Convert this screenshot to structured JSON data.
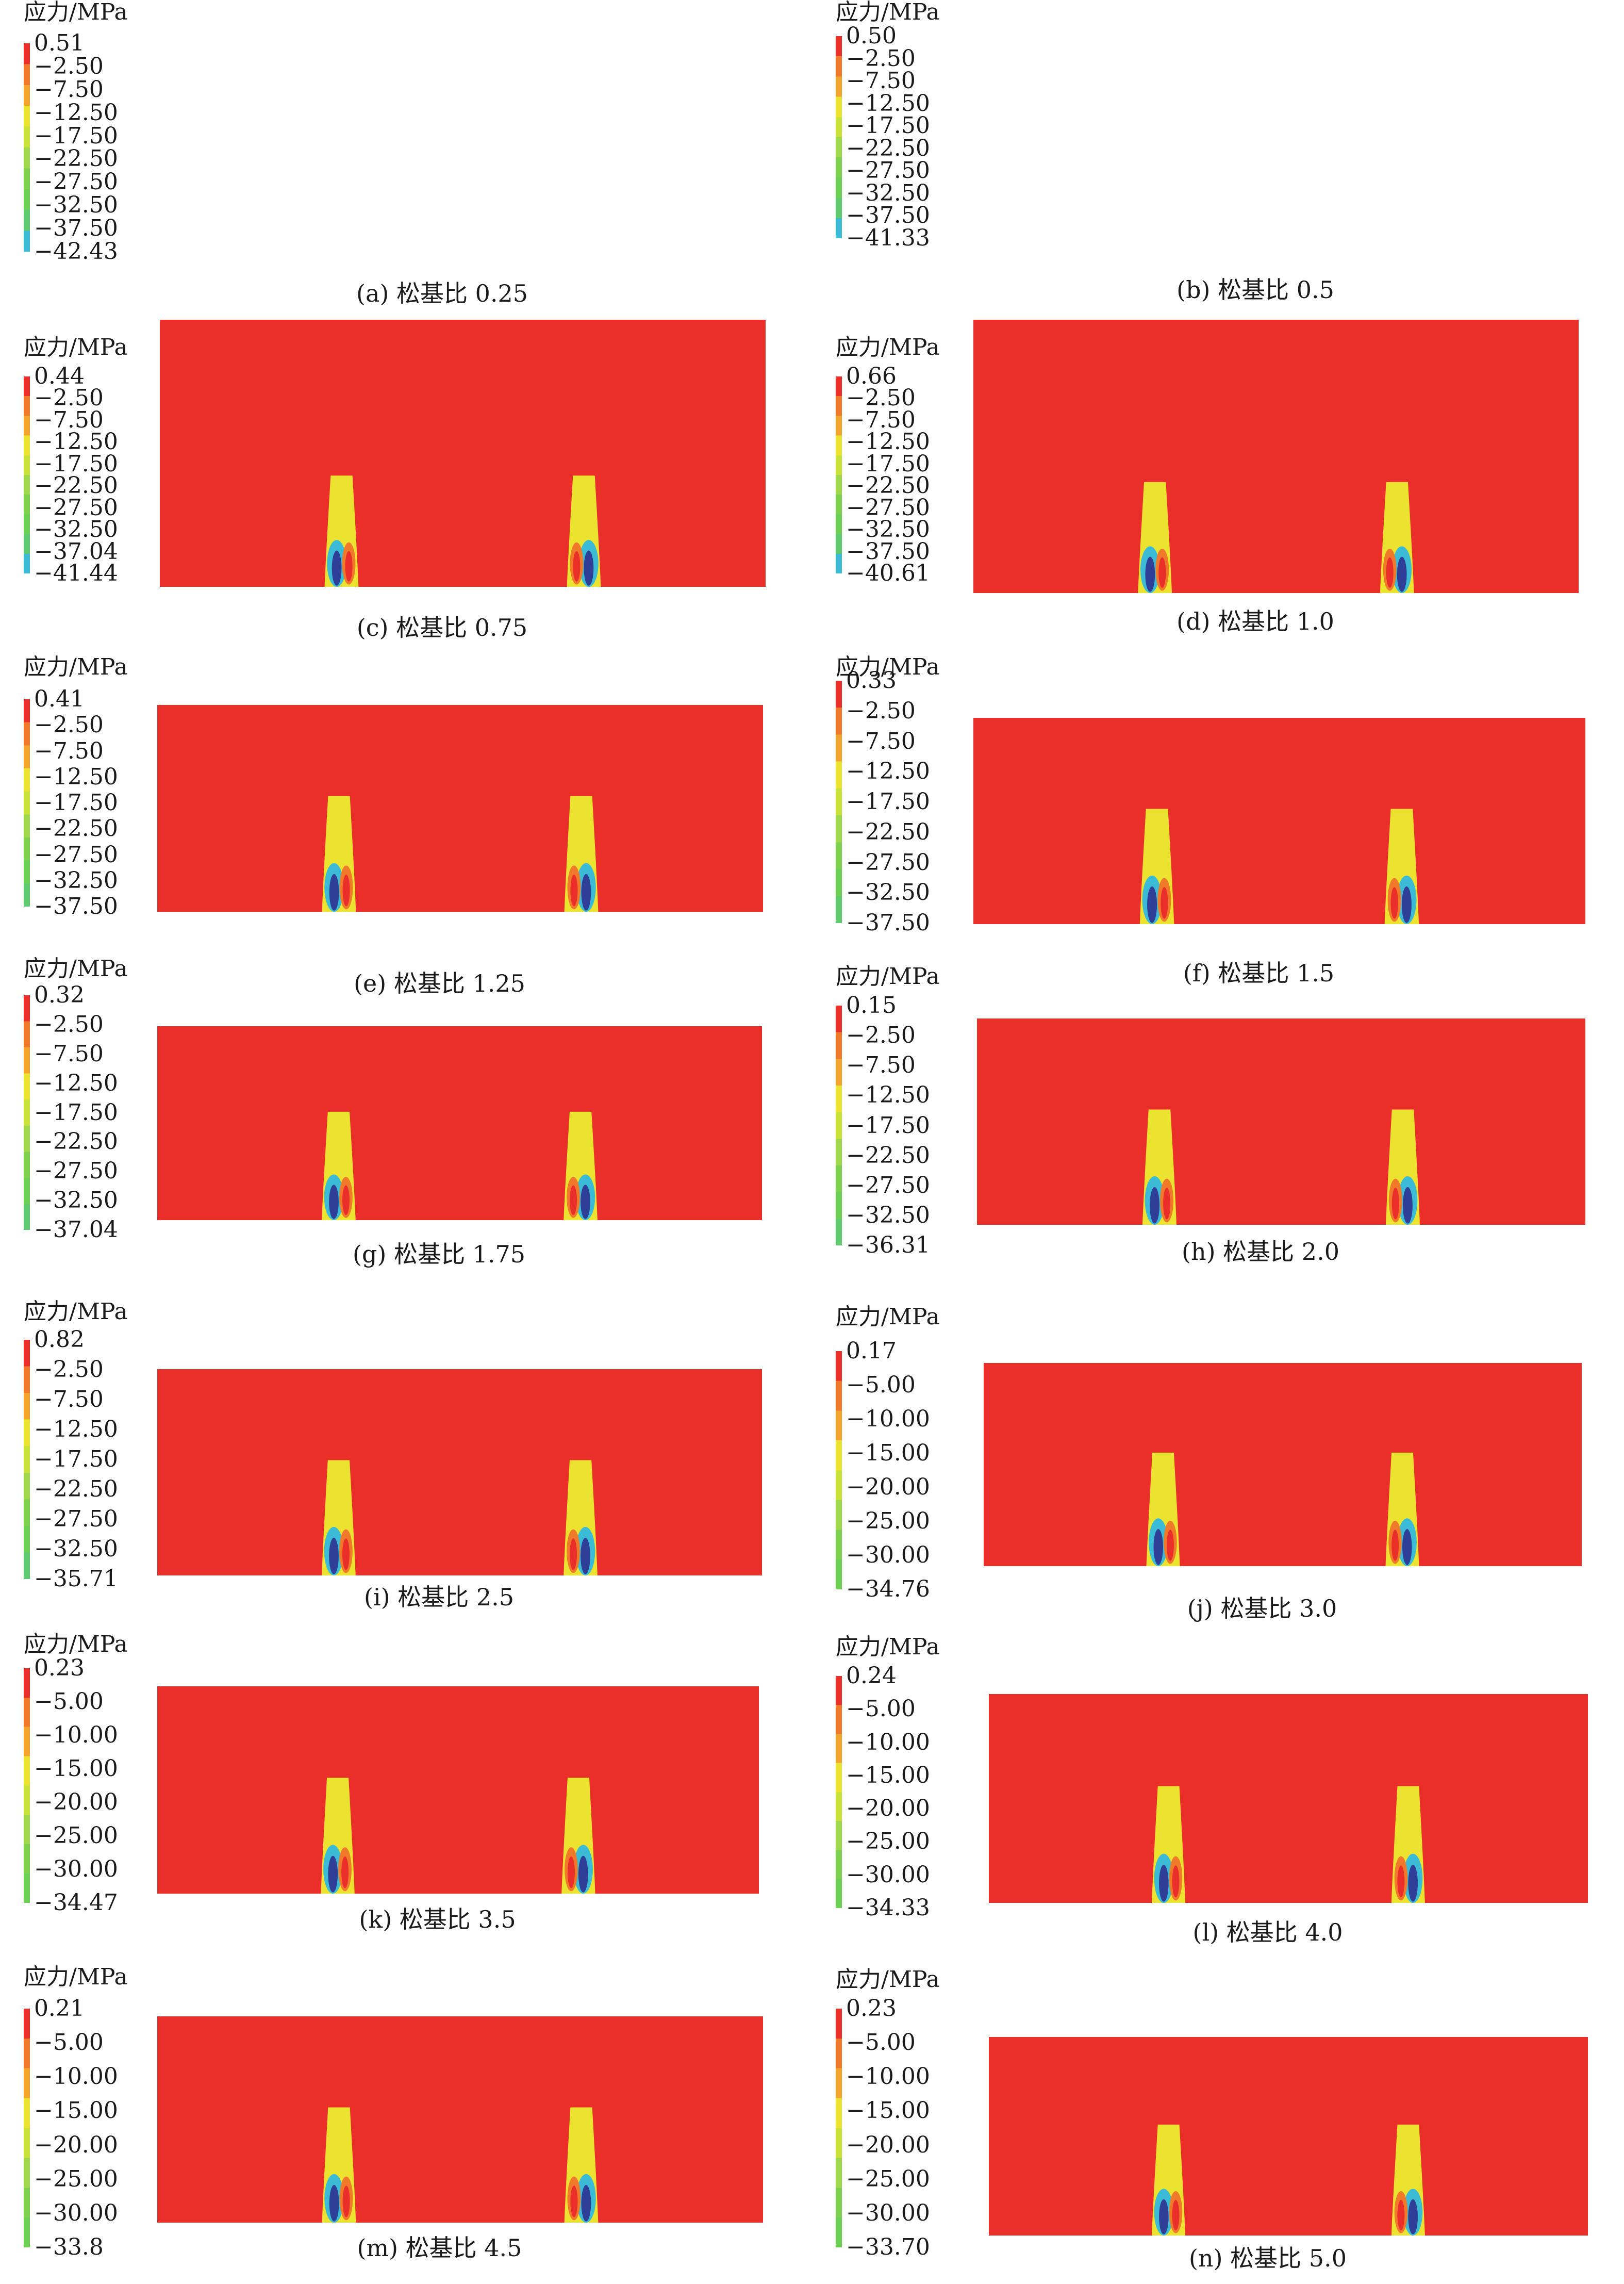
{
  "colorbar_palette": [
    "#ea2f2b",
    "#f07a2a",
    "#f3a42c",
    "#ece330",
    "#c9e23a",
    "#9fd84a",
    "#7ed04f",
    "#6cd055",
    "#5ecb6e",
    "#3bbbd6",
    "#3b73c7",
    "#2f3e96"
  ],
  "contour_palette": [
    "#ea2f2b",
    "#f07a2a",
    "#f3a42c",
    "#ece330",
    "#c9e23a",
    "#9fd84a",
    "#7ed04f",
    "#6cd055"
  ],
  "panels": [
    {
      "unit": "应力/MPa",
      "caption": "(a) 松基比 0.25",
      "ticks": [
        "0.51",
        "−2.50",
        "−7.50",
        "−12.50",
        "−17.50",
        "−22.50",
        "−27.50",
        "−32.50",
        "−37.50",
        "−42.43"
      ]
    },
    {
      "unit": "应力/MPa",
      "caption": "(b) 松基比 0.5",
      "ticks": [
        "0.50",
        "−2.50",
        "−7.50",
        "−12.50",
        "−17.50",
        "−22.50",
        "−27.50",
        "−32.50",
        "−37.50",
        "−41.33"
      ]
    },
    {
      "unit": "应力/MPa",
      "caption": "(c) 松基比 0.75",
      "ticks": [
        "0.44",
        "−2.50",
        "−7.50",
        "−12.50",
        "−17.50",
        "−22.50",
        "−27.50",
        "−32.50",
        "−37.04",
        "−41.44"
      ]
    },
    {
      "unit": "应力/MPa",
      "caption": "(d) 松基比 1.0",
      "ticks": [
        "0.66",
        "−2.50",
        "−7.50",
        "−12.50",
        "−17.50",
        "−22.50",
        "−27.50",
        "−32.50",
        "−37.50",
        "−40.61"
      ]
    },
    {
      "unit": "应力/MPa",
      "caption": "(e) 松基比 1.25",
      "ticks": [
        "0.41",
        "−2.50",
        "−7.50",
        "−12.50",
        "−17.50",
        "−22.50",
        "−27.50",
        "−32.50",
        "−37.50"
      ]
    },
    {
      "unit": "应力/MPa",
      "caption": "(f) 松基比 1.5",
      "ticks": [
        "0.33",
        "−2.50",
        "−7.50",
        "−12.50",
        "−17.50",
        "−22.50",
        "−27.50",
        "−32.50",
        "−37.50"
      ]
    },
    {
      "unit": "应力/MPa",
      "caption": "(g) 松基比 1.75",
      "ticks": [
        "0.32",
        "−2.50",
        "−7.50",
        "−12.50",
        "−17.50",
        "−22.50",
        "−27.50",
        "−32.50",
        "−37.04"
      ]
    },
    {
      "unit": "应力/MPa",
      "caption": "(h) 松基比 2.0",
      "ticks": [
        "0.15",
        "−2.50",
        "−7.50",
        "−12.50",
        "−17.50",
        "−22.50",
        "−27.50",
        "−32.50",
        "−36.31"
      ]
    },
    {
      "unit": "应力/MPa",
      "caption": "(i) 松基比 2.5",
      "ticks": [
        "0.82",
        "−2.50",
        "−7.50",
        "−12.50",
        "−17.50",
        "−22.50",
        "−27.50",
        "−32.50",
        "−35.71"
      ]
    },
    {
      "unit": "应力/MPa",
      "caption": "(j) 松基比 3.0",
      "ticks": [
        "0.17",
        "−5.00",
        "−10.00",
        "−15.00",
        "−20.00",
        "−25.00",
        "−30.00",
        "−34.76"
      ]
    },
    {
      "unit": "应力/MPa",
      "caption": "(k) 松基比 3.5",
      "ticks": [
        "0.23",
        "−5.00",
        "−10.00",
        "−15.00",
        "−20.00",
        "−25.00",
        "−30.00",
        "−34.47"
      ]
    },
    {
      "unit": "应力/MPa",
      "caption": "(l) 松基比 4.0",
      "ticks": [
        "0.24",
        "−5.00",
        "−10.00",
        "−15.00",
        "−20.00",
        "−25.00",
        "−30.00",
        "−34.33"
      ]
    },
    {
      "unit": "应力/MPa",
      "caption": "(m) 松基比 4.5",
      "ticks": [
        "0.21",
        "−5.00",
        "−10.00",
        "−15.00",
        "−20.00",
        "−25.00",
        "−30.00",
        "−33.8"
      ]
    },
    {
      "unit": "应力/MPa",
      "caption": "(n) 松基比 5.0",
      "ticks": [
        "0.23",
        "−5.00",
        "−10.00",
        "−15.00",
        "−20.00",
        "−25.00",
        "−30.00",
        "−33.70"
      ]
    }
  ]
}
